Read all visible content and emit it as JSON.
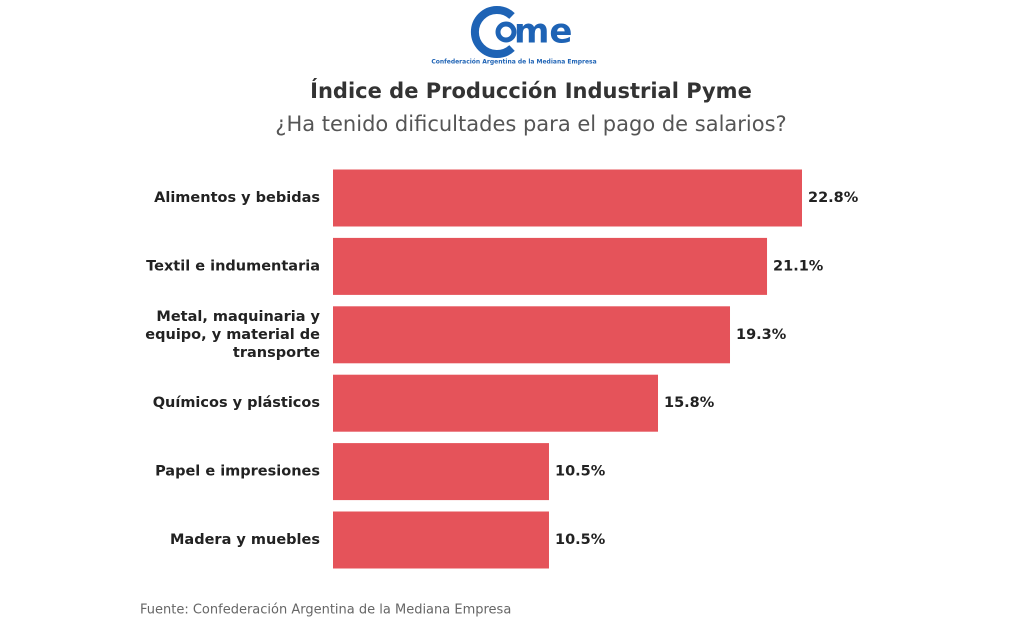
{
  "logo": {
    "wordmark": "me",
    "tagline": "Confederación Argentina de la Mediana Empresa"
  },
  "chart_data": {
    "type": "bar",
    "orientation": "horizontal",
    "title": "Índice de Producción Industrial Pyme",
    "subtitle": "¿Ha tenido dificultades para el pago de salarios?",
    "categories": [
      "Alimentos y bebidas",
      "Textil e indumentaria",
      "Metal, maquinaria y equipo, y material de transporte",
      "Químicos y plásticos",
      "Papel e impresiones",
      "Madera y muebles"
    ],
    "values": [
      22.8,
      21.1,
      19.3,
      15.8,
      10.5,
      10.5
    ],
    "value_labels": [
      "22.8%",
      "21.1%",
      "19.3%",
      "15.8%",
      "10.5%",
      "10.5%"
    ],
    "color": "#e5535a",
    "source": "Fuente: Confederación Argentina de la Mediana Empresa"
  }
}
